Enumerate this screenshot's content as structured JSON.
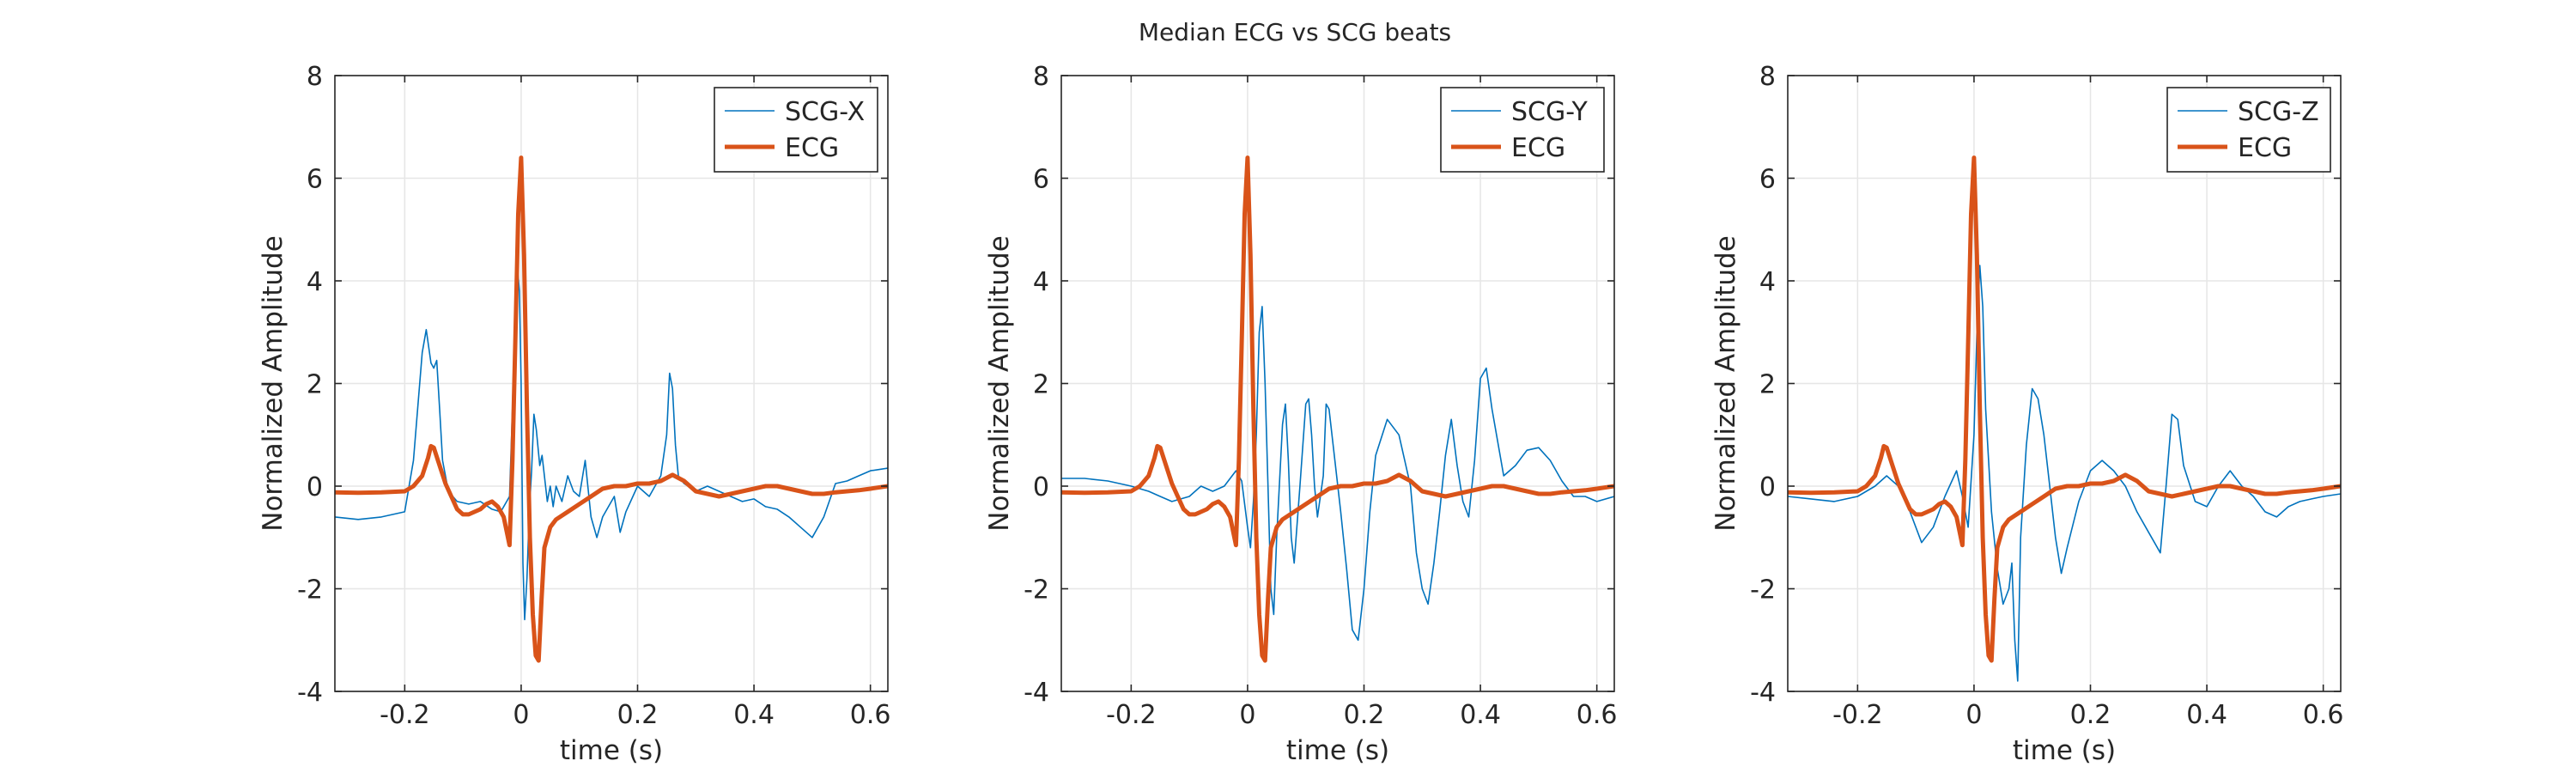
{
  "figure": {
    "title": "Median ECG vs SCG beats"
  },
  "colors": {
    "scg": "#0072BD",
    "ecg": "#D95319",
    "axis": "#262626",
    "grid": "#e6e6e6"
  },
  "chart_data": [
    {
      "type": "line",
      "xlabel": "time (s)",
      "ylabel": "Normalized Amplitude",
      "xlim": [
        -0.32,
        0.63
      ],
      "ylim": [
        -4,
        8
      ],
      "xticks": [
        -0.2,
        0,
        0.2,
        0.4,
        0.6
      ],
      "xtick_labels": [
        "-0.2",
        "0",
        "0.2",
        "0.4",
        "0.6"
      ],
      "yticks": [
        -4,
        -2,
        0,
        2,
        4,
        6,
        8
      ],
      "ytick_labels": [
        "-4",
        "-2",
        "0",
        "2",
        "4",
        "6",
        "8"
      ],
      "grid": true,
      "legend_position": "top-right",
      "series": [
        {
          "name": "SCG-X",
          "color": "#0072BD",
          "line_width": "thin",
          "x": [
            -0.32,
            -0.28,
            -0.24,
            -0.2,
            -0.185,
            -0.17,
            -0.163,
            -0.155,
            -0.15,
            -0.145,
            -0.14,
            -0.135,
            -0.125,
            -0.11,
            -0.09,
            -0.07,
            -0.05,
            -0.035,
            -0.02,
            -0.015,
            -0.008,
            -0.003,
            0.0,
            0.003,
            0.006,
            0.01,
            0.014,
            0.018,
            0.022,
            0.026,
            0.032,
            0.036,
            0.04,
            0.045,
            0.05,
            0.055,
            0.06,
            0.07,
            0.08,
            0.09,
            0.1,
            0.11,
            0.12,
            0.13,
            0.14,
            0.15,
            0.16,
            0.17,
            0.18,
            0.2,
            0.22,
            0.24,
            0.25,
            0.255,
            0.26,
            0.265,
            0.27,
            0.28,
            0.3,
            0.32,
            0.34,
            0.36,
            0.38,
            0.4,
            0.42,
            0.44,
            0.46,
            0.48,
            0.5,
            0.52,
            0.54,
            0.56,
            0.58,
            0.6,
            0.63
          ],
          "y": [
            -0.6,
            -0.65,
            -0.6,
            -0.5,
            0.5,
            2.6,
            3.05,
            2.4,
            2.3,
            2.45,
            1.5,
            0.5,
            -0.1,
            -0.3,
            -0.35,
            -0.3,
            -0.45,
            -0.5,
            -0.2,
            1.5,
            4.5,
            3.8,
            2.0,
            -1.5,
            -2.6,
            -1.8,
            -0.5,
            0.3,
            1.4,
            1.1,
            0.4,
            0.6,
            0.2,
            -0.3,
            0.0,
            -0.4,
            0.0,
            -0.3,
            0.2,
            -0.1,
            -0.2,
            0.5,
            -0.6,
            -1.0,
            -0.6,
            -0.4,
            -0.2,
            -0.9,
            -0.5,
            0.0,
            -0.2,
            0.2,
            1.0,
            2.2,
            1.9,
            0.8,
            0.2,
            0.05,
            -0.1,
            0.0,
            -0.1,
            -0.2,
            -0.3,
            -0.25,
            -0.4,
            -0.45,
            -0.6,
            -0.8,
            -1.0,
            -0.6,
            0.05,
            0.1,
            0.2,
            0.3,
            0.35
          ]
        },
        {
          "name": "ECG",
          "color": "#D95319",
          "line_width": "thick",
          "x": [
            -0.32,
            -0.28,
            -0.24,
            -0.2,
            -0.185,
            -0.17,
            -0.16,
            -0.155,
            -0.15,
            -0.14,
            -0.13,
            -0.12,
            -0.11,
            -0.1,
            -0.09,
            -0.08,
            -0.07,
            -0.06,
            -0.05,
            -0.04,
            -0.03,
            -0.02,
            -0.015,
            -0.01,
            -0.005,
            0.0,
            0.005,
            0.01,
            0.015,
            0.02,
            0.025,
            0.03,
            0.035,
            0.04,
            0.05,
            0.06,
            0.08,
            0.1,
            0.12,
            0.14,
            0.16,
            0.18,
            0.2,
            0.22,
            0.24,
            0.26,
            0.28,
            0.3,
            0.32,
            0.34,
            0.36,
            0.38,
            0.4,
            0.42,
            0.44,
            0.46,
            0.48,
            0.5,
            0.52,
            0.54,
            0.56,
            0.58,
            0.6,
            0.63
          ],
          "y": [
            -0.12,
            -0.13,
            -0.12,
            -0.1,
            0.0,
            0.2,
            0.55,
            0.78,
            0.75,
            0.4,
            0.05,
            -0.2,
            -0.45,
            -0.55,
            -0.55,
            -0.5,
            -0.45,
            -0.35,
            -0.3,
            -0.4,
            -0.6,
            -1.15,
            0.5,
            2.8,
            5.3,
            6.4,
            4.5,
            1.5,
            -1.0,
            -2.5,
            -3.3,
            -3.4,
            -2.2,
            -1.2,
            -0.8,
            -0.65,
            -0.5,
            -0.35,
            -0.2,
            -0.05,
            0.0,
            0.0,
            0.05,
            0.05,
            0.1,
            0.22,
            0.1,
            -0.1,
            -0.15,
            -0.2,
            -0.15,
            -0.1,
            -0.05,
            0.0,
            0.0,
            -0.05,
            -0.1,
            -0.15,
            -0.15,
            -0.12,
            -0.1,
            -0.08,
            -0.05,
            0.0
          ]
        }
      ]
    },
    {
      "type": "line",
      "xlabel": "time (s)",
      "ylabel": "Normalized Amplitude",
      "xlim": [
        -0.32,
        0.63
      ],
      "ylim": [
        -4,
        8
      ],
      "xticks": [
        -0.2,
        0,
        0.2,
        0.4,
        0.6
      ],
      "xtick_labels": [
        "-0.2",
        "0",
        "0.2",
        "0.4",
        "0.6"
      ],
      "yticks": [
        -4,
        -2,
        0,
        2,
        4,
        6,
        8
      ],
      "ytick_labels": [
        "-4",
        "-2",
        "0",
        "2",
        "4",
        "6",
        "8"
      ],
      "grid": true,
      "legend_position": "top-right",
      "series": [
        {
          "name": "SCG-Y",
          "color": "#0072BD",
          "line_width": "thin",
          "x": [
            -0.32,
            -0.28,
            -0.24,
            -0.2,
            -0.17,
            -0.15,
            -0.13,
            -0.1,
            -0.08,
            -0.06,
            -0.04,
            -0.02,
            -0.01,
            0.0,
            0.005,
            0.01,
            0.015,
            0.02,
            0.025,
            0.03,
            0.035,
            0.04,
            0.045,
            0.05,
            0.06,
            0.065,
            0.07,
            0.075,
            0.08,
            0.09,
            0.1,
            0.105,
            0.11,
            0.115,
            0.12,
            0.13,
            0.135,
            0.14,
            0.15,
            0.16,
            0.17,
            0.18,
            0.19,
            0.2,
            0.21,
            0.22,
            0.24,
            0.26,
            0.28,
            0.29,
            0.3,
            0.31,
            0.32,
            0.33,
            0.34,
            0.35,
            0.36,
            0.37,
            0.38,
            0.39,
            0.4,
            0.41,
            0.42,
            0.44,
            0.46,
            0.48,
            0.5,
            0.52,
            0.54,
            0.56,
            0.58,
            0.6,
            0.63
          ],
          "y": [
            0.15,
            0.15,
            0.1,
            0.0,
            -0.1,
            -0.2,
            -0.3,
            -0.2,
            0.0,
            -0.1,
            0.0,
            0.3,
            0.1,
            -0.8,
            -1.2,
            -0.3,
            1.0,
            3.0,
            3.5,
            2.0,
            0.0,
            -2.0,
            -2.5,
            -1.0,
            1.2,
            1.6,
            0.5,
            -1.0,
            -1.5,
            0.0,
            1.6,
            1.7,
            1.0,
            0.0,
            -0.6,
            0.2,
            1.6,
            1.5,
            0.5,
            -0.5,
            -1.6,
            -2.8,
            -3.0,
            -2.0,
            -0.5,
            0.6,
            1.3,
            1.0,
            0.0,
            -1.3,
            -2.0,
            -2.3,
            -1.5,
            -0.5,
            0.6,
            1.3,
            0.4,
            -0.3,
            -0.6,
            0.5,
            2.1,
            2.3,
            1.5,
            0.2,
            0.4,
            0.7,
            0.75,
            0.5,
            0.1,
            -0.2,
            -0.2,
            -0.3,
            -0.2
          ]
        },
        {
          "name": "ECG",
          "color": "#D95319",
          "line_width": "thick",
          "x": [
            -0.32,
            -0.28,
            -0.24,
            -0.2,
            -0.185,
            -0.17,
            -0.16,
            -0.155,
            -0.15,
            -0.14,
            -0.13,
            -0.12,
            -0.11,
            -0.1,
            -0.09,
            -0.08,
            -0.07,
            -0.06,
            -0.05,
            -0.04,
            -0.03,
            -0.02,
            -0.015,
            -0.01,
            -0.005,
            0.0,
            0.005,
            0.01,
            0.015,
            0.02,
            0.025,
            0.03,
            0.035,
            0.04,
            0.05,
            0.06,
            0.08,
            0.1,
            0.12,
            0.14,
            0.16,
            0.18,
            0.2,
            0.22,
            0.24,
            0.26,
            0.28,
            0.3,
            0.32,
            0.34,
            0.36,
            0.38,
            0.4,
            0.42,
            0.44,
            0.46,
            0.48,
            0.5,
            0.52,
            0.54,
            0.56,
            0.58,
            0.6,
            0.63
          ],
          "y": [
            -0.12,
            -0.13,
            -0.12,
            -0.1,
            0.0,
            0.2,
            0.55,
            0.78,
            0.75,
            0.4,
            0.05,
            -0.2,
            -0.45,
            -0.55,
            -0.55,
            -0.5,
            -0.45,
            -0.35,
            -0.3,
            -0.4,
            -0.6,
            -1.15,
            0.5,
            2.8,
            5.3,
            6.4,
            4.5,
            1.5,
            -1.0,
            -2.5,
            -3.3,
            -3.4,
            -2.2,
            -1.2,
            -0.8,
            -0.65,
            -0.5,
            -0.35,
            -0.2,
            -0.05,
            0.0,
            0.0,
            0.05,
            0.05,
            0.1,
            0.22,
            0.1,
            -0.1,
            -0.15,
            -0.2,
            -0.15,
            -0.1,
            -0.05,
            0.0,
            0.0,
            -0.05,
            -0.1,
            -0.15,
            -0.15,
            -0.12,
            -0.1,
            -0.08,
            -0.05,
            0.0
          ]
        }
      ]
    },
    {
      "type": "line",
      "xlabel": "time (s)",
      "ylabel": "Normalized Amplitude",
      "xlim": [
        -0.32,
        0.63
      ],
      "ylim": [
        -4,
        8
      ],
      "xticks": [
        -0.2,
        0,
        0.2,
        0.4,
        0.6
      ],
      "xtick_labels": [
        "-0.2",
        "0",
        "0.2",
        "0.4",
        "0.6"
      ],
      "yticks": [
        -4,
        -2,
        0,
        2,
        4,
        6,
        8
      ],
      "ytick_labels": [
        "-4",
        "-2",
        "0",
        "2",
        "4",
        "6",
        "8"
      ],
      "grid": true,
      "legend_position": "top-right",
      "series": [
        {
          "name": "SCG-Z",
          "color": "#0072BD",
          "line_width": "thin",
          "x": [
            -0.32,
            -0.28,
            -0.24,
            -0.2,
            -0.17,
            -0.15,
            -0.13,
            -0.11,
            -0.09,
            -0.07,
            -0.05,
            -0.03,
            -0.02,
            -0.01,
            0.0,
            0.005,
            0.01,
            0.015,
            0.02,
            0.03,
            0.04,
            0.05,
            0.06,
            0.065,
            0.07,
            0.075,
            0.08,
            0.09,
            0.1,
            0.11,
            0.12,
            0.13,
            0.14,
            0.15,
            0.16,
            0.18,
            0.2,
            0.22,
            0.24,
            0.26,
            0.28,
            0.3,
            0.31,
            0.32,
            0.33,
            0.34,
            0.35,
            0.36,
            0.38,
            0.4,
            0.42,
            0.44,
            0.46,
            0.48,
            0.5,
            0.52,
            0.54,
            0.56,
            0.58,
            0.6,
            0.63
          ],
          "y": [
            -0.2,
            -0.25,
            -0.3,
            -0.2,
            0.0,
            0.2,
            0.0,
            -0.5,
            -1.1,
            -0.8,
            -0.2,
            0.3,
            -0.2,
            -0.8,
            1.0,
            3.0,
            4.3,
            3.5,
            1.5,
            -0.5,
            -1.6,
            -2.3,
            -2.0,
            -1.5,
            -3.0,
            -3.8,
            -1.0,
            0.8,
            1.9,
            1.7,
            1.0,
            0.0,
            -1.0,
            -1.7,
            -1.2,
            -0.3,
            0.3,
            0.5,
            0.3,
            0.0,
            -0.5,
            -0.9,
            -1.1,
            -1.3,
            0.0,
            1.4,
            1.3,
            0.4,
            -0.3,
            -0.4,
            0.0,
            0.3,
            0.0,
            -0.2,
            -0.5,
            -0.6,
            -0.4,
            -0.3,
            -0.25,
            -0.2,
            -0.15
          ]
        },
        {
          "name": "ECG",
          "color": "#D95319",
          "line_width": "thick",
          "x": [
            -0.32,
            -0.28,
            -0.24,
            -0.2,
            -0.185,
            -0.17,
            -0.16,
            -0.155,
            -0.15,
            -0.14,
            -0.13,
            -0.12,
            -0.11,
            -0.1,
            -0.09,
            -0.08,
            -0.07,
            -0.06,
            -0.05,
            -0.04,
            -0.03,
            -0.02,
            -0.015,
            -0.01,
            -0.005,
            0.0,
            0.005,
            0.01,
            0.015,
            0.02,
            0.025,
            0.03,
            0.035,
            0.04,
            0.05,
            0.06,
            0.08,
            0.1,
            0.12,
            0.14,
            0.16,
            0.18,
            0.2,
            0.22,
            0.24,
            0.26,
            0.28,
            0.3,
            0.32,
            0.34,
            0.36,
            0.38,
            0.4,
            0.42,
            0.44,
            0.46,
            0.48,
            0.5,
            0.52,
            0.54,
            0.56,
            0.58,
            0.6,
            0.63
          ],
          "y": [
            -0.12,
            -0.13,
            -0.12,
            -0.1,
            0.0,
            0.2,
            0.55,
            0.78,
            0.75,
            0.4,
            0.05,
            -0.2,
            -0.45,
            -0.55,
            -0.55,
            -0.5,
            -0.45,
            -0.35,
            -0.3,
            -0.4,
            -0.6,
            -1.15,
            0.5,
            2.8,
            5.3,
            6.4,
            4.5,
            1.5,
            -1.0,
            -2.5,
            -3.3,
            -3.4,
            -2.2,
            -1.2,
            -0.8,
            -0.65,
            -0.5,
            -0.35,
            -0.2,
            -0.05,
            0.0,
            0.0,
            0.05,
            0.05,
            0.1,
            0.22,
            0.1,
            -0.1,
            -0.15,
            -0.2,
            -0.15,
            -0.1,
            -0.05,
            0.0,
            0.0,
            -0.05,
            -0.1,
            -0.15,
            -0.15,
            -0.12,
            -0.1,
            -0.08,
            -0.05,
            0.0
          ]
        }
      ]
    }
  ]
}
